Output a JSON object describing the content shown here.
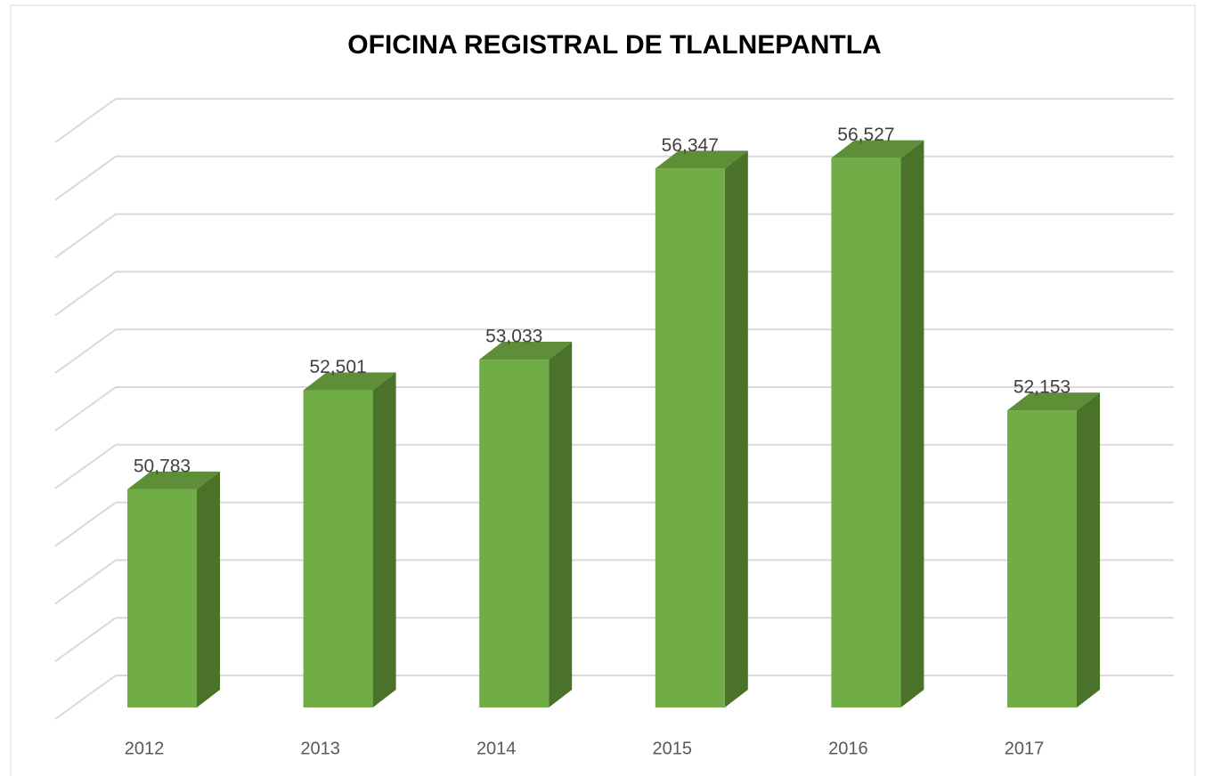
{
  "chart_data": {
    "type": "bar3d",
    "title": "OFICINA REGISTRAL DE TLALNEPANTLA",
    "categories": [
      "2012",
      "2013",
      "2014",
      "2015",
      "2016",
      "2017"
    ],
    "values": [
      50783,
      52501,
      53033,
      56347,
      56527,
      52153
    ],
    "value_labels": [
      "50,783",
      "52,501",
      "53,033",
      "56,347",
      "56,527",
      "52,153"
    ],
    "color": "#70ad47",
    "ylim": [
      47000,
      57000
    ],
    "yticks": [
      47000,
      48000,
      49000,
      50000,
      51000,
      52000,
      53000,
      54000,
      55000,
      56000,
      57000
    ],
    "grid": true
  }
}
